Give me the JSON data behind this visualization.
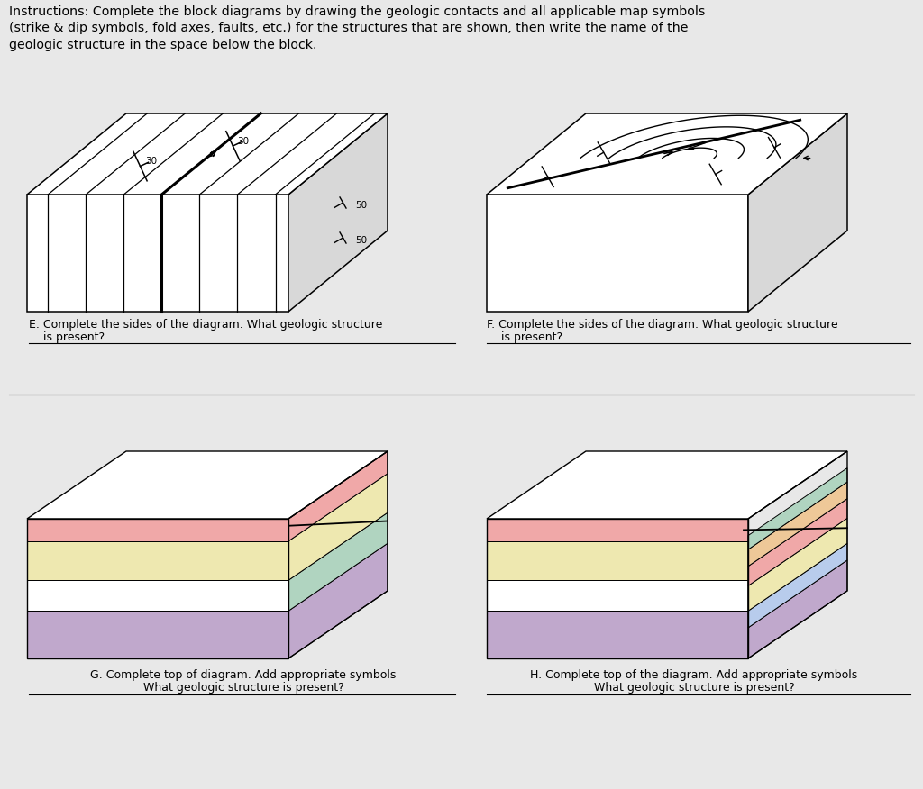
{
  "title_text": "Instructions: Complete the block diagrams by drawing the geologic contacts and all applicable map symbols\n(strike & dip symbols, fold axes, faults, etc.) for the structures that are shown, then write the name of the\ngeologic structure in the space below the block.",
  "label_E": "E. Complete the sides of the diagram. What geologic structure",
  "label_E2": "    is present?",
  "label_F": "F. Complete the sides of the diagram. What geologic structure",
  "label_F2": "    is present?",
  "label_G": "G. Complete top of diagram. Add appropriate symbols",
  "label_G2": "What geologic structure is present?",
  "label_H": "H. Complete top of the diagram. Add appropriate symbols",
  "label_H2": "What geologic structure is present?",
  "bg_color": "#e8e8e8",
  "block_bg": "#ffffff",
  "colors": {
    "pink": "#f0a8a8",
    "yellow": "#eee8b0",
    "white_layer": "#f8f8f8",
    "mint": "#b0d4c0",
    "purple": "#c0a8cc",
    "peach": "#eec898",
    "light_blue": "#b8ccec",
    "top_face": "#f0f0f0",
    "right_face": "#d8d8d8"
  }
}
